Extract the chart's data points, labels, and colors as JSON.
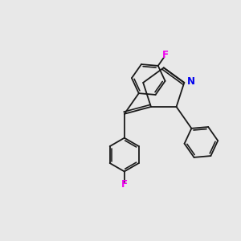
{
  "background_color": "#e8e8e8",
  "bond_color": "#1a1a1a",
  "N_color": "#0000ee",
  "F_color": "#ee00ee",
  "line_width": 1.3,
  "figsize": [
    3.0,
    3.0
  ],
  "dpi": 100,
  "xlim": [
    0.0,
    10.0
  ],
  "ylim": [
    0.5,
    10.5
  ]
}
